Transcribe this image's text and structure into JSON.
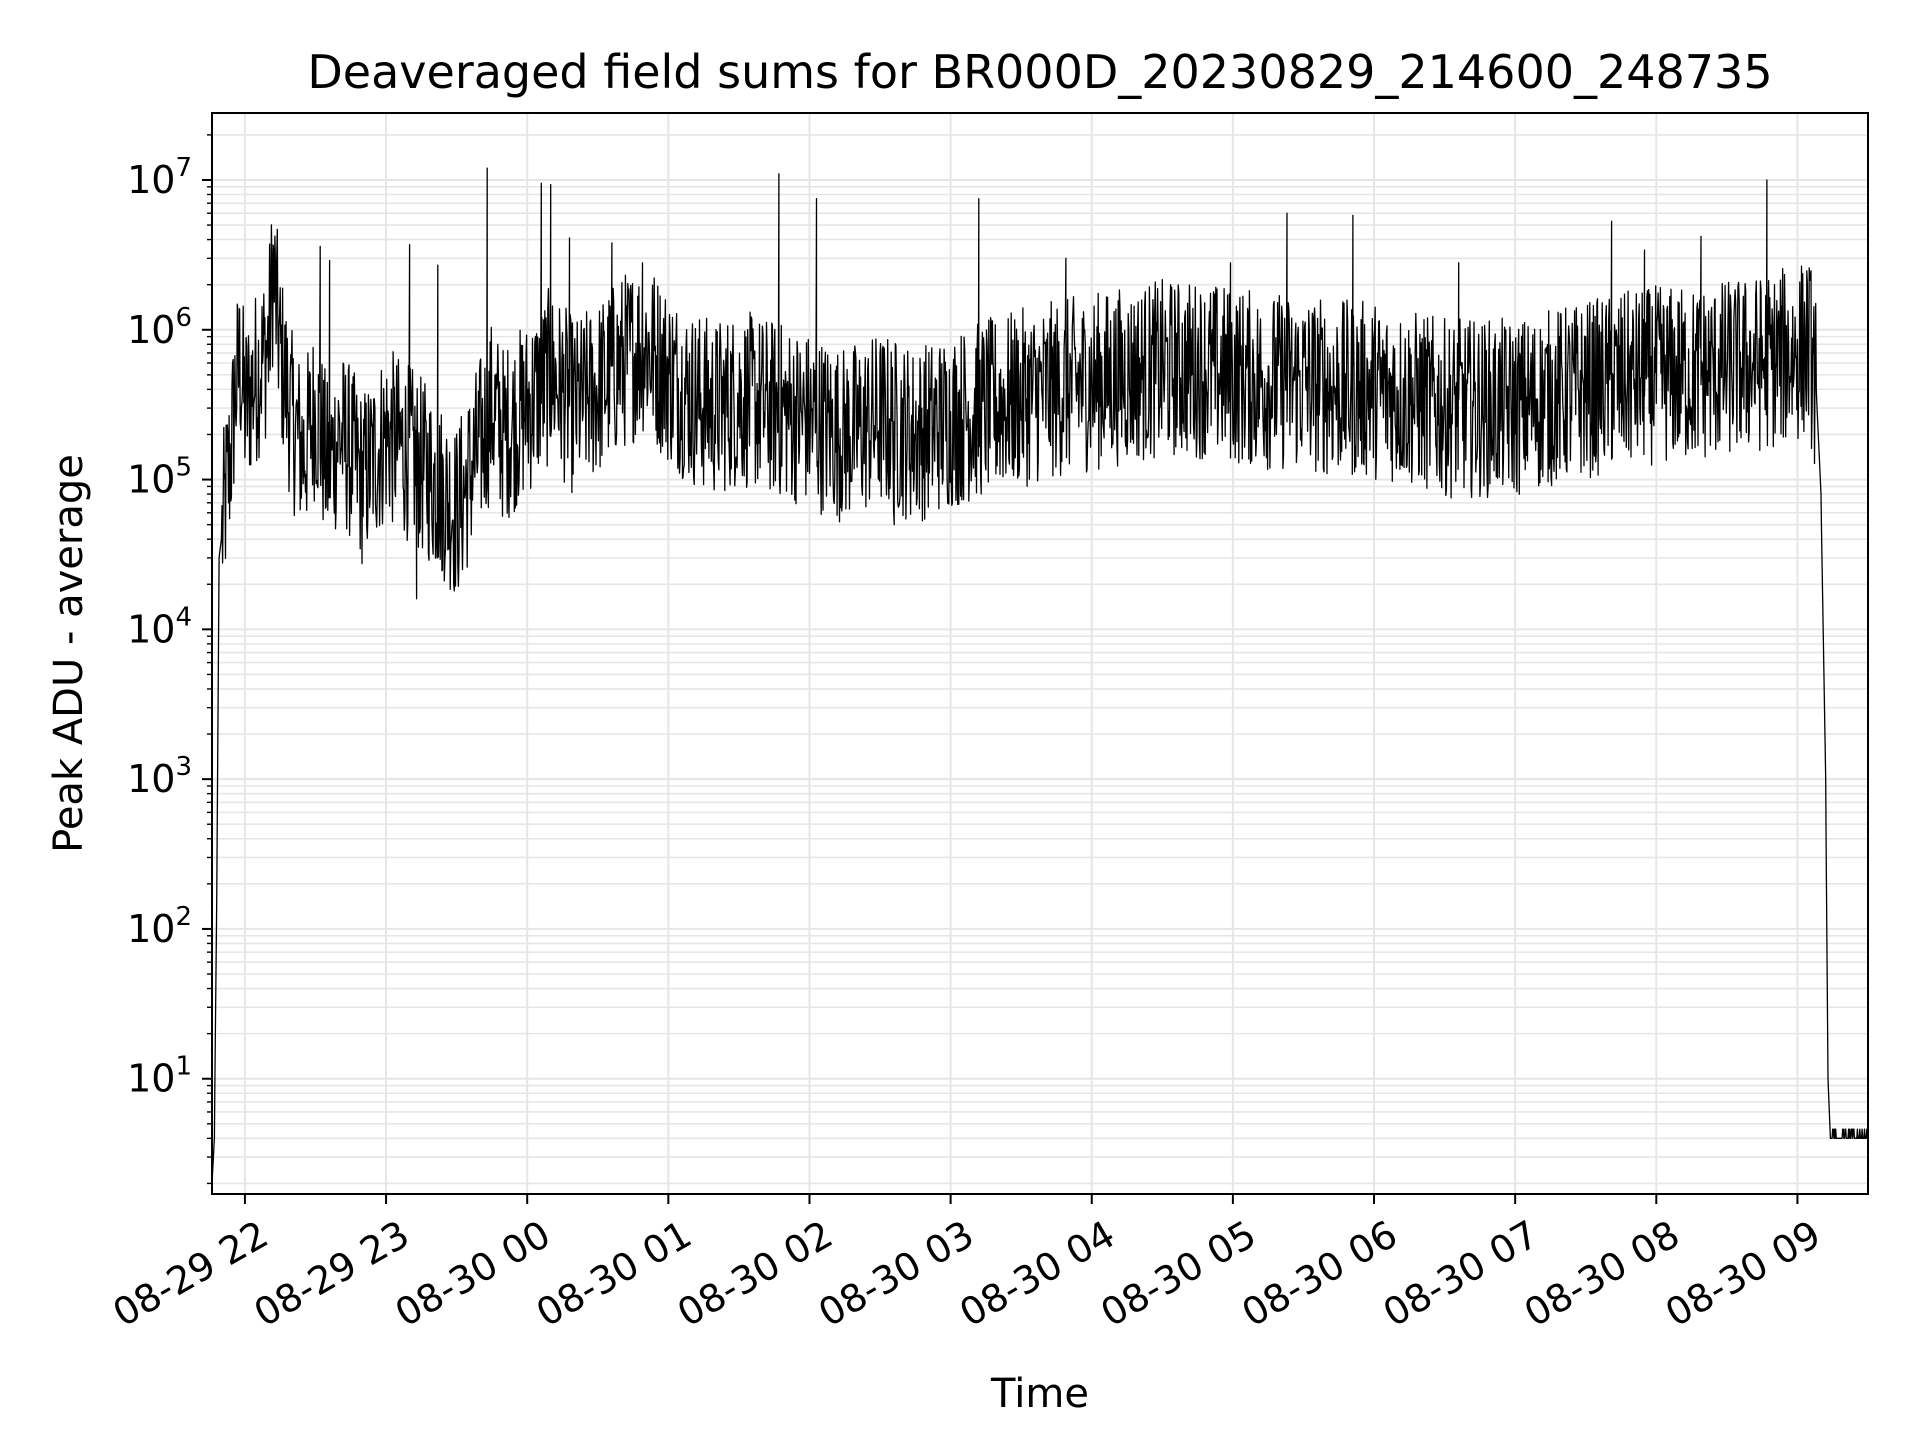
{
  "chart_data": {
    "type": "line",
    "title": "Deaveraged field sums for BR000D_20230829_214600_248735",
    "xlabel": "Time",
    "ylabel": "Peak ADU - average",
    "x_range": [
      "2023-08-29 21:46",
      "2023-08-30 09:30"
    ],
    "y_scale": "log",
    "ylim": [
      1.7,
      28000000
    ],
    "grid": true,
    "x_ticks": [
      {
        "label": "08-29 22",
        "value": "2023-08-29 22:00"
      },
      {
        "label": "08-29 23",
        "value": "2023-08-29 23:00"
      },
      {
        "label": "08-30 00",
        "value": "2023-08-30 00:00"
      },
      {
        "label": "08-30 01",
        "value": "2023-08-30 01:00"
      },
      {
        "label": "08-30 02",
        "value": "2023-08-30 02:00"
      },
      {
        "label": "08-30 03",
        "value": "2023-08-30 03:00"
      },
      {
        "label": "08-30 04",
        "value": "2023-08-30 04:00"
      },
      {
        "label": "08-30 05",
        "value": "2023-08-30 05:00"
      },
      {
        "label": "08-30 06",
        "value": "2023-08-30 06:00"
      },
      {
        "label": "08-30 07",
        "value": "2023-08-30 07:00"
      },
      {
        "label": "08-30 08",
        "value": "2023-08-30 08:00"
      },
      {
        "label": "08-30 09",
        "value": "2023-08-30 09:00"
      }
    ],
    "y_ticks": [
      {
        "base": "10",
        "exp": "1",
        "value": 10
      },
      {
        "base": "10",
        "exp": "2",
        "value": 100
      },
      {
        "base": "10",
        "exp": "3",
        "value": 1000
      },
      {
        "base": "10",
        "exp": "4",
        "value": 10000
      },
      {
        "base": "10",
        "exp": "5",
        "value": 100000
      },
      {
        "base": "10",
        "exp": "6",
        "value": 1000000
      },
      {
        "base": "10",
        "exp": "7",
        "value": 10000000
      }
    ],
    "series": [
      {
        "color": "#000000",
        "points": [
          [
            "2023-08-29 21:46",
            2
          ],
          [
            "2023-08-29 21:47",
            4
          ],
          [
            "2023-08-29 21:48",
            150
          ],
          [
            "2023-08-29 21:49",
            30000
          ],
          [
            "2023-08-29 21:50",
            40000
          ],
          [
            "2023-08-29 21:52",
            80000
          ],
          [
            "2023-08-29 21:54",
            150000
          ],
          [
            "2023-08-29 21:56",
            400000
          ],
          [
            "2023-08-29 21:58",
            600000
          ],
          [
            "2023-08-29 22:00",
            300000
          ],
          [
            "2023-08-29 22:05",
            500000
          ],
          [
            "2023-08-29 22:10",
            800000
          ],
          [
            "2023-08-29 22:12",
            2500000
          ],
          [
            "2023-08-29 22:15",
            700000
          ],
          [
            "2023-08-29 22:20",
            250000
          ],
          [
            "2023-08-29 22:25",
            150000
          ],
          [
            "2023-08-29 22:30",
            300000
          ],
          [
            "2023-08-29 22:35",
            120000
          ],
          [
            "2023-08-29 22:40",
            200000
          ],
          [
            "2023-08-29 22:45",
            150000
          ],
          [
            "2023-08-29 22:50",
            100000
          ],
          [
            "2023-08-29 23:00",
            200000
          ],
          [
            "2023-08-29 23:10",
            150000
          ],
          [
            "2023-08-29 23:20",
            100000
          ],
          [
            "2023-08-29 23:25",
            80000
          ],
          [
            "2023-08-29 23:30",
            60000
          ],
          [
            "2023-08-29 23:35",
            100000
          ],
          [
            "2023-08-29 23:45",
            300000
          ],
          [
            "2023-08-29 23:50",
            200000
          ],
          [
            "2023-08-30 00:00",
            300000
          ],
          [
            "2023-08-30 00:10",
            500000
          ],
          [
            "2023-08-30 00:20",
            300000
          ],
          [
            "2023-08-30 00:30",
            400000
          ],
          [
            "2023-08-30 00:40",
            600000
          ],
          [
            "2023-08-30 00:50",
            800000
          ],
          [
            "2023-08-30 01:00",
            500000
          ],
          [
            "2023-08-30 01:10",
            350000
          ],
          [
            "2023-08-30 01:20",
            300000
          ],
          [
            "2023-08-30 01:30",
            350000
          ],
          [
            "2023-08-30 01:45",
            300000
          ],
          [
            "2023-08-30 02:00",
            250000
          ],
          [
            "2023-08-30 02:15",
            200000
          ],
          [
            "2023-08-30 02:30",
            250000
          ],
          [
            "2023-08-30 02:45",
            200000
          ],
          [
            "2023-08-30 03:00",
            250000
          ],
          [
            "2023-08-30 03:15",
            300000
          ],
          [
            "2023-08-30 03:30",
            350000
          ],
          [
            "2023-08-30 03:45",
            400000
          ],
          [
            "2023-08-30 04:00",
            450000
          ],
          [
            "2023-08-30 04:15",
            500000
          ],
          [
            "2023-08-30 04:30",
            550000
          ],
          [
            "2023-08-30 04:45",
            550000
          ],
          [
            "2023-08-30 05:00",
            500000
          ],
          [
            "2023-08-30 05:15",
            450000
          ],
          [
            "2023-08-30 05:30",
            450000
          ],
          [
            "2023-08-30 05:45",
            400000
          ],
          [
            "2023-08-30 06:00",
            400000
          ],
          [
            "2023-08-30 06:15",
            350000
          ],
          [
            "2023-08-30 06:30",
            300000
          ],
          [
            "2023-08-30 06:45",
            300000
          ],
          [
            "2023-08-30 07:00",
            300000
          ],
          [
            "2023-08-30 07:15",
            350000
          ],
          [
            "2023-08-30 07:30",
            400000
          ],
          [
            "2023-08-30 07:45",
            450000
          ],
          [
            "2023-08-30 08:00",
            500000
          ],
          [
            "2023-08-30 08:15",
            500000
          ],
          [
            "2023-08-30 08:30",
            550000
          ],
          [
            "2023-08-30 08:45",
            600000
          ],
          [
            "2023-08-30 09:00",
            700000
          ],
          [
            "2023-08-30 09:05",
            800000
          ],
          [
            "2023-08-30 09:08",
            400000
          ],
          [
            "2023-08-30 09:10",
            80000
          ],
          [
            "2023-08-30 09:12",
            1000
          ],
          [
            "2023-08-30 09:13",
            10
          ],
          [
            "2023-08-30 09:14",
            4
          ],
          [
            "2023-08-30 09:30",
            4
          ]
        ],
        "spikes": [
          [
            "2023-08-29 22:13",
            2600000
          ],
          [
            "2023-08-29 22:32",
            3600000
          ],
          [
            "2023-08-29 22:36",
            2900000
          ],
          [
            "2023-08-29 23:10",
            3700000
          ],
          [
            "2023-08-29 23:13",
            16000
          ],
          [
            "2023-08-29 23:22",
            2700000
          ],
          [
            "2023-08-29 23:24",
            25000
          ],
          [
            "2023-08-29 23:43",
            12000000
          ],
          [
            "2023-08-30 00:06",
            9500000
          ],
          [
            "2023-08-30 00:10",
            9300000
          ],
          [
            "2023-08-30 00:18",
            4100000
          ],
          [
            "2023-08-30 00:36",
            3800000
          ],
          [
            "2023-08-30 00:49",
            2800000
          ],
          [
            "2023-08-30 01:47",
            11000000
          ],
          [
            "2023-08-30 02:03",
            7500000
          ],
          [
            "2023-08-30 02:36",
            50000
          ],
          [
            "2023-08-30 03:12",
            7500000
          ],
          [
            "2023-08-30 03:49",
            3000000
          ],
          [
            "2023-08-30 04:59",
            2800000
          ],
          [
            "2023-08-30 05:23",
            6000000
          ],
          [
            "2023-08-30 05:51",
            5800000
          ],
          [
            "2023-08-30 06:36",
            2800000
          ],
          [
            "2023-08-30 07:41",
            5300000
          ],
          [
            "2023-08-30 07:55",
            3400000
          ],
          [
            "2023-08-30 08:19",
            4200000
          ],
          [
            "2023-08-30 08:47",
            10000000
          ]
        ]
      }
    ]
  }
}
